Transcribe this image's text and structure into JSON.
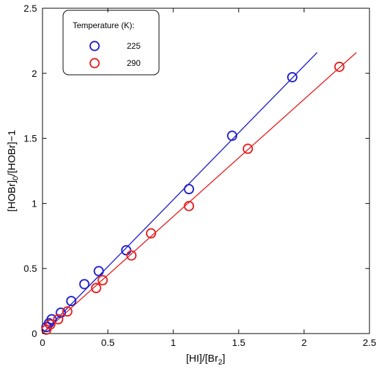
{
  "chart_data": {
    "type": "scatter",
    "xlabel": "[HI]/[Br2]",
    "ylabel": "[HOBr]0/[HOBr]−1",
    "xlim": [
      0,
      2.5
    ],
    "ylim": [
      0,
      2.5
    ],
    "xticks": [
      "0",
      "0.5",
      "1",
      "1.5",
      "2",
      "2.5"
    ],
    "yticks": [
      "0",
      "0.5",
      "1",
      "1.5",
      "2",
      "2.5"
    ],
    "grid": false,
    "legend": {
      "title": "Temperature (K):",
      "placement": "top-left"
    },
    "series": [
      {
        "name": "225",
        "color": "#1f1fcc",
        "marker": "open-circle",
        "points": [
          [
            0.03,
            0.05
          ],
          [
            0.05,
            0.08
          ],
          [
            0.07,
            0.11
          ],
          [
            0.14,
            0.16
          ],
          [
            0.22,
            0.25
          ],
          [
            0.32,
            0.38
          ],
          [
            0.43,
            0.48
          ],
          [
            0.64,
            0.64
          ],
          [
            1.12,
            1.11
          ],
          [
            1.45,
            1.52
          ],
          [
            1.91,
            1.97
          ]
        ],
        "fit": {
          "x": [
            0,
            2.1
          ],
          "y": [
            0,
            2.16
          ]
        }
      },
      {
        "name": "290",
        "color": "#e62020",
        "marker": "open-circle",
        "points": [
          [
            0.03,
            0.03
          ],
          [
            0.06,
            0.07
          ],
          [
            0.12,
            0.11
          ],
          [
            0.19,
            0.17
          ],
          [
            0.41,
            0.35
          ],
          [
            0.46,
            0.41
          ],
          [
            0.68,
            0.6
          ],
          [
            0.83,
            0.77
          ],
          [
            1.12,
            0.98
          ],
          [
            1.57,
            1.42
          ],
          [
            2.27,
            2.05
          ]
        ],
        "fit": {
          "x": [
            0,
            2.4
          ],
          "y": [
            0,
            2.16
          ]
        }
      }
    ]
  }
}
